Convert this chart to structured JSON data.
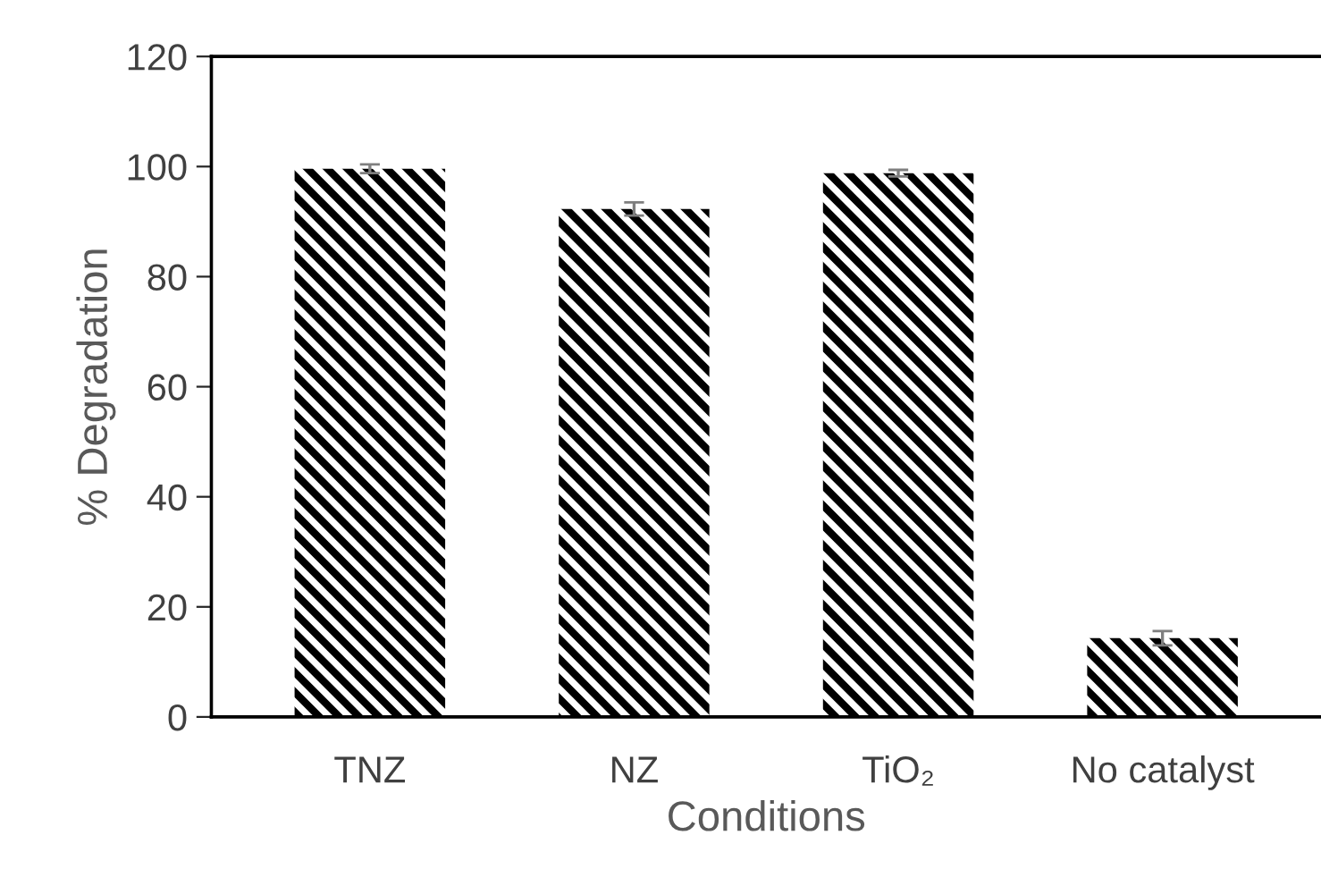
{
  "chart_data": {
    "type": "bar",
    "xlabel": "Conditions",
    "ylabel": "% Degradation",
    "categories": [
      "TNZ",
      "NZ",
      "TiO₂",
      "No catalyst"
    ],
    "values": [
      99.6,
      92.3,
      98.8,
      14.3
    ],
    "errors": [
      0.8,
      1.2,
      0.6,
      1.3
    ],
    "color": "#000000",
    "ylim": [
      0,
      120
    ],
    "yticks": [
      0,
      20,
      40,
      60,
      80,
      100,
      120
    ],
    "grid": false,
    "legend": false
  }
}
